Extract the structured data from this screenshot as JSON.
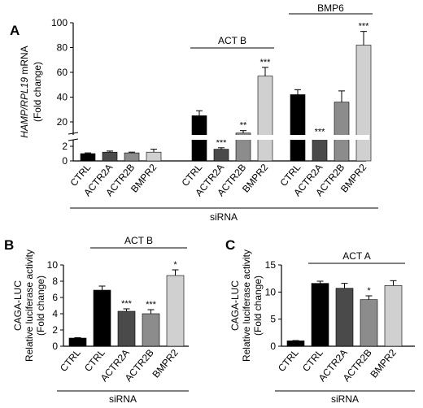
{
  "chart_data": [
    {
      "panel": "A",
      "type": "bar",
      "ylabel_italic": "HAMP/RPL19",
      "ylabel_rest": " mRNA",
      "ylabel_line2": "(Fold change)",
      "axis_break": true,
      "lower_ylim": [
        0,
        2
      ],
      "lower_ticks": [
        "0",
        "2"
      ],
      "upper_ylim": [
        20,
        100
      ],
      "upper_ticks": [
        "20",
        "40",
        "60",
        "80",
        "100"
      ],
      "xlabel": "siRNA",
      "groups": [
        {
          "bracket": "",
          "categories": [
            "CTRL",
            "ACTR2A",
            "ACTR2B",
            "BMPR2"
          ],
          "values": [
            1.0,
            1.2,
            1.1,
            1.2
          ],
          "errors": [
            0.1,
            0.15,
            0.1,
            0.4
          ],
          "sig": [
            "",
            "",
            "",
            ""
          ]
        },
        {
          "bracket": "ACT B",
          "categories": [
            "CTRL",
            "ACTR2A",
            "ACTR2B",
            "BMPR2"
          ],
          "values": [
            25,
            1.6,
            11,
            57
          ],
          "errors": [
            4,
            0.2,
            2,
            7
          ],
          "sig": [
            "",
            "***",
            "**",
            "***"
          ]
        },
        {
          "bracket": "BMP6",
          "categories": [
            "CTRL",
            "ACTR2A",
            "ACTR2B",
            "BMPR2"
          ],
          "values": [
            42,
            7,
            36,
            82
          ],
          "errors": [
            4,
            1,
            9,
            11
          ],
          "sig": [
            "",
            "***",
            "",
            "***"
          ]
        }
      ]
    },
    {
      "panel": "B",
      "type": "bar",
      "ylabel_line1": "CAGA-LUC",
      "ylabel_line2": "Relative luciferase activity",
      "ylabel_line3": "(Fold change)",
      "ylim": [
        0,
        10
      ],
      "yticks": [
        "0",
        "2",
        "4",
        "6",
        "8",
        "10"
      ],
      "bracket": "ACT B",
      "xlabel": "siRNA",
      "categories": [
        "CTRL",
        "CTRL",
        "ACTR2A",
        "ACTR2B",
        "BMPR2"
      ],
      "values": [
        1.0,
        6.9,
        4.3,
        4.0,
        8.7
      ],
      "errors": [
        0.05,
        0.5,
        0.3,
        0.5,
        0.7
      ],
      "sig": [
        "",
        "",
        "***",
        "***",
        "*"
      ]
    },
    {
      "panel": "C",
      "type": "bar",
      "ylabel_line1": "CAGA-LUC",
      "ylabel_line2": "Relative luciferase activity",
      "ylabel_line3": "(Fold change)",
      "ylim": [
        0,
        15
      ],
      "yticks": [
        "0",
        "5",
        "10",
        "15"
      ],
      "bracket": "ACT A",
      "xlabel": "siRNA",
      "categories": [
        "CTRL",
        "CTRL",
        "ACTR2A",
        "ACTR2B",
        "BMPR2"
      ],
      "values": [
        1.0,
        11.6,
        10.7,
        8.6,
        11.2
      ],
      "errors": [
        0.05,
        0.4,
        0.9,
        0.7,
        0.9
      ],
      "sig": [
        "",
        "",
        "",
        "*",
        ""
      ]
    }
  ],
  "colors": {
    "ctrl": "#000000",
    "actr2a": "#4a4a4a",
    "actr2b": "#8c8c8c",
    "bmpr2": "#d0d0d0",
    "white": "#ffffff",
    "axis": "#000000"
  }
}
